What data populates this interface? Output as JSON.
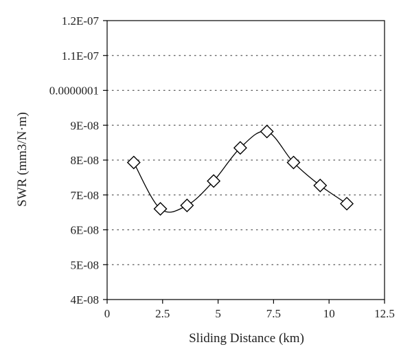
{
  "chart_data": {
    "type": "line",
    "xlabel": "Sliding Distance (km)",
    "ylabel": "SWR (mm3/N·m)",
    "xlim": [
      0,
      12.5
    ],
    "ylim": [
      4e-08,
      1.2e-07
    ],
    "x_ticks": [
      0,
      2.5,
      5,
      7.5,
      10,
      12.5
    ],
    "x_tick_labels": [
      "0",
      "2.5",
      "5",
      "7.5",
      "10",
      "12.5"
    ],
    "y_ticks": [
      4e-08,
      5e-08,
      6e-08,
      7e-08,
      8e-08,
      9e-08,
      1e-07,
      1.1e-07,
      1.2e-07
    ],
    "y_tick_labels": [
      "4E-08",
      "5E-08",
      "6E-08",
      "7E-08",
      "8E-08",
      "9E-08",
      "0.0000001",
      "1.1E-07",
      "1.2E-07"
    ],
    "grid": "horizontal dotted",
    "marker": "diamond",
    "line": "smooth",
    "colors": {
      "line": "#000000",
      "grid": "#555555",
      "axis": "#000000"
    },
    "series": [
      {
        "x": [
          1.2,
          2.4,
          3.6,
          4.8,
          6.0,
          7.2,
          8.4,
          9.6,
          10.8
        ],
        "y": [
          7.93e-08,
          6.6e-08,
          6.7e-08,
          7.4e-08,
          8.35e-08,
          8.82e-08,
          7.93e-08,
          7.27e-08,
          6.75e-08
        ]
      }
    ]
  }
}
